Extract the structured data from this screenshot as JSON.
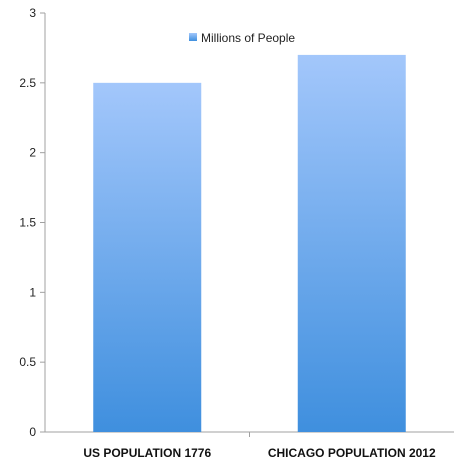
{
  "chart_data": {
    "type": "bar",
    "categories": [
      "US POPULATION 1776",
      "CHICAGO POPULATION 2012"
    ],
    "series": [
      {
        "name": "Millions of People",
        "values": [
          2.5,
          2.7
        ]
      }
    ],
    "ylim": [
      0,
      3
    ],
    "yticks": [
      "0",
      "0.5",
      "1",
      "1.5",
      "2",
      "2.5",
      "3"
    ],
    "grid": false,
    "legend_position": "top-center",
    "colors": {
      "bar_top": "#a3c7fb",
      "bar_bottom": "#3f8fde",
      "axis": "#a0a0a0"
    }
  }
}
